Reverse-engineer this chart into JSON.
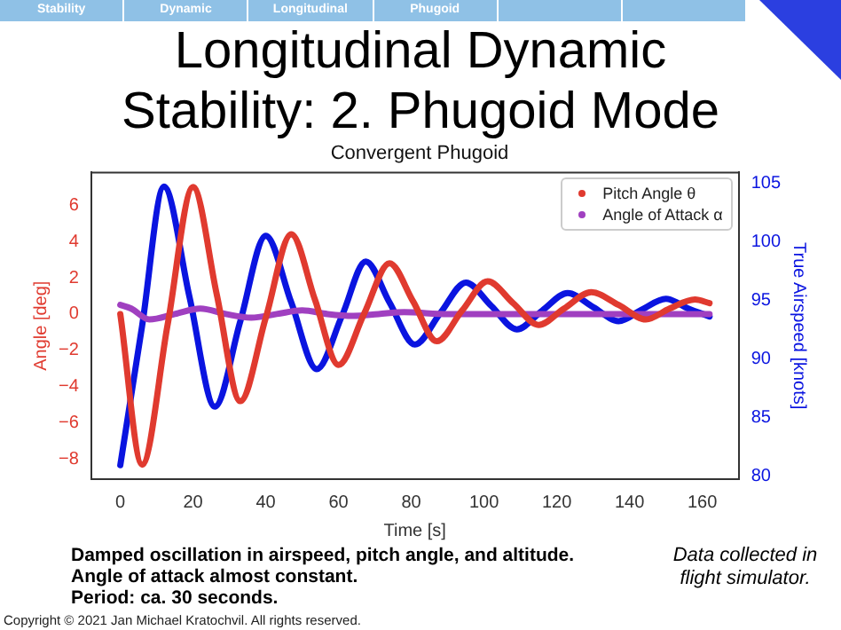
{
  "chart_data": {
    "type": "line",
    "title": "Longitudinal Dynamic Stability: 2. Phugoid Mode",
    "subtitle": "Convergent Phugoid",
    "xlabel": "Time [s]",
    "ylabel": "Angle [deg]",
    "y2label": "True Airspeed [knots]",
    "xlim": [
      -8,
      170
    ],
    "xticks": [
      0,
      20,
      40,
      60,
      80,
      100,
      120,
      140,
      160
    ],
    "ylim": [
      -9.1,
      7.8
    ],
    "yticks": [
      {
        "value": -8,
        "label": "−8"
      },
      {
        "value": -6,
        "label": "−6"
      },
      {
        "value": -4,
        "label": "−4"
      },
      {
        "value": -2,
        "label": "−2"
      },
      0,
      2,
      4,
      6
    ],
    "y2lim": [
      79.7,
      105.9
    ],
    "y2ticks": [
      80,
      85,
      90,
      95,
      100,
      105
    ],
    "legend": "top right",
    "grid": false,
    "line_style": "solid",
    "series": [
      {
        "name": "Pitch Angle θ",
        "color": "#e03a2f",
        "x": [
          0,
          6,
          13,
          20,
          26.5,
          33,
          40,
          47,
          53.5,
          60,
          67,
          74,
          80.5,
          87,
          94,
          101,
          108,
          115,
          122,
          129.5,
          137,
          144.5,
          151,
          158,
          162
        ],
        "values": [
          0,
          -8.3,
          -0.6,
          7,
          1.1,
          -4.8,
          -0.2,
          4.4,
          0.8,
          -2.8,
          0,
          2.8,
          0.7,
          -1.5,
          0.2,
          1.8,
          0.6,
          -0.6,
          0.3,
          1.2,
          0.5,
          -0.3,
          0.3,
          0.8,
          0.6
        ]
      },
      {
        "name": "Angle of Attack α",
        "color": "#a040c0",
        "x": [
          0,
          3,
          8,
          15,
          22,
          29,
          36,
          43,
          50,
          57,
          64,
          71,
          78,
          90,
          162
        ],
        "values": [
          0.5,
          0.3,
          -0.3,
          0,
          0.3,
          0,
          -0.2,
          0,
          0.2,
          0,
          -0.1,
          0,
          0.1,
          0,
          0
        ]
      },
      {
        "color": "#0a14e0",
        "axis": "y2",
        "x": [
          0,
          6,
          12,
          19,
          26,
          33,
          40,
          47,
          54,
          61,
          67.5,
          74,
          81,
          88,
          95,
          102,
          109,
          116,
          123,
          130,
          137,
          143.5,
          150,
          156,
          162
        ],
        "values": [
          80.9,
          92.8,
          104.7,
          95.3,
          85.9,
          93.2,
          100.5,
          94.8,
          89.1,
          93.7,
          98.3,
          94.8,
          91.2,
          93.9,
          96.5,
          94.5,
          92.5,
          94.1,
          95.6,
          94.4,
          93.2,
          94.2,
          95.1,
          94.3,
          93.6
        ]
      }
    ],
    "annotations": [
      "Stability",
      "Dynamic",
      "Longitudinal",
      "Phugoid",
      "Damped oscillation in airspeed, pitch angle, and altitude.",
      "Angle of attack almost constant.",
      "Period: ca. 30 seconds.",
      "Data collected in flight simulator.",
      "Copyright © 2021 Jan Michael Kratochvil. All rights reserved."
    ]
  }
}
